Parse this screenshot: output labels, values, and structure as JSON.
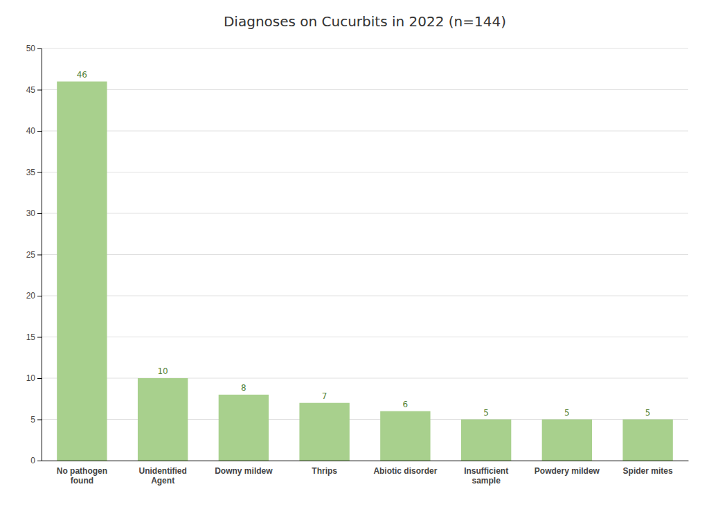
{
  "chart_data": {
    "type": "bar",
    "title": "Diagnoses on Cucurbits in 2022 (n=144)",
    "categories": [
      "No pathogen\nfound",
      "Unidentified\nAgent",
      "Downy mildew",
      "Thrips",
      "Abiotic disorder",
      "Insufficient\nsample",
      "Powdery mildew",
      "Spider mites"
    ],
    "values": [
      46,
      10,
      8,
      7,
      6,
      5,
      5,
      5
    ],
    "color": "#a8d08d",
    "ylim": [
      0,
      50
    ],
    "yticks": [
      0,
      5,
      10,
      15,
      20,
      25,
      30,
      35,
      40,
      45,
      50
    ],
    "grid": true,
    "data_labels": true
  }
}
